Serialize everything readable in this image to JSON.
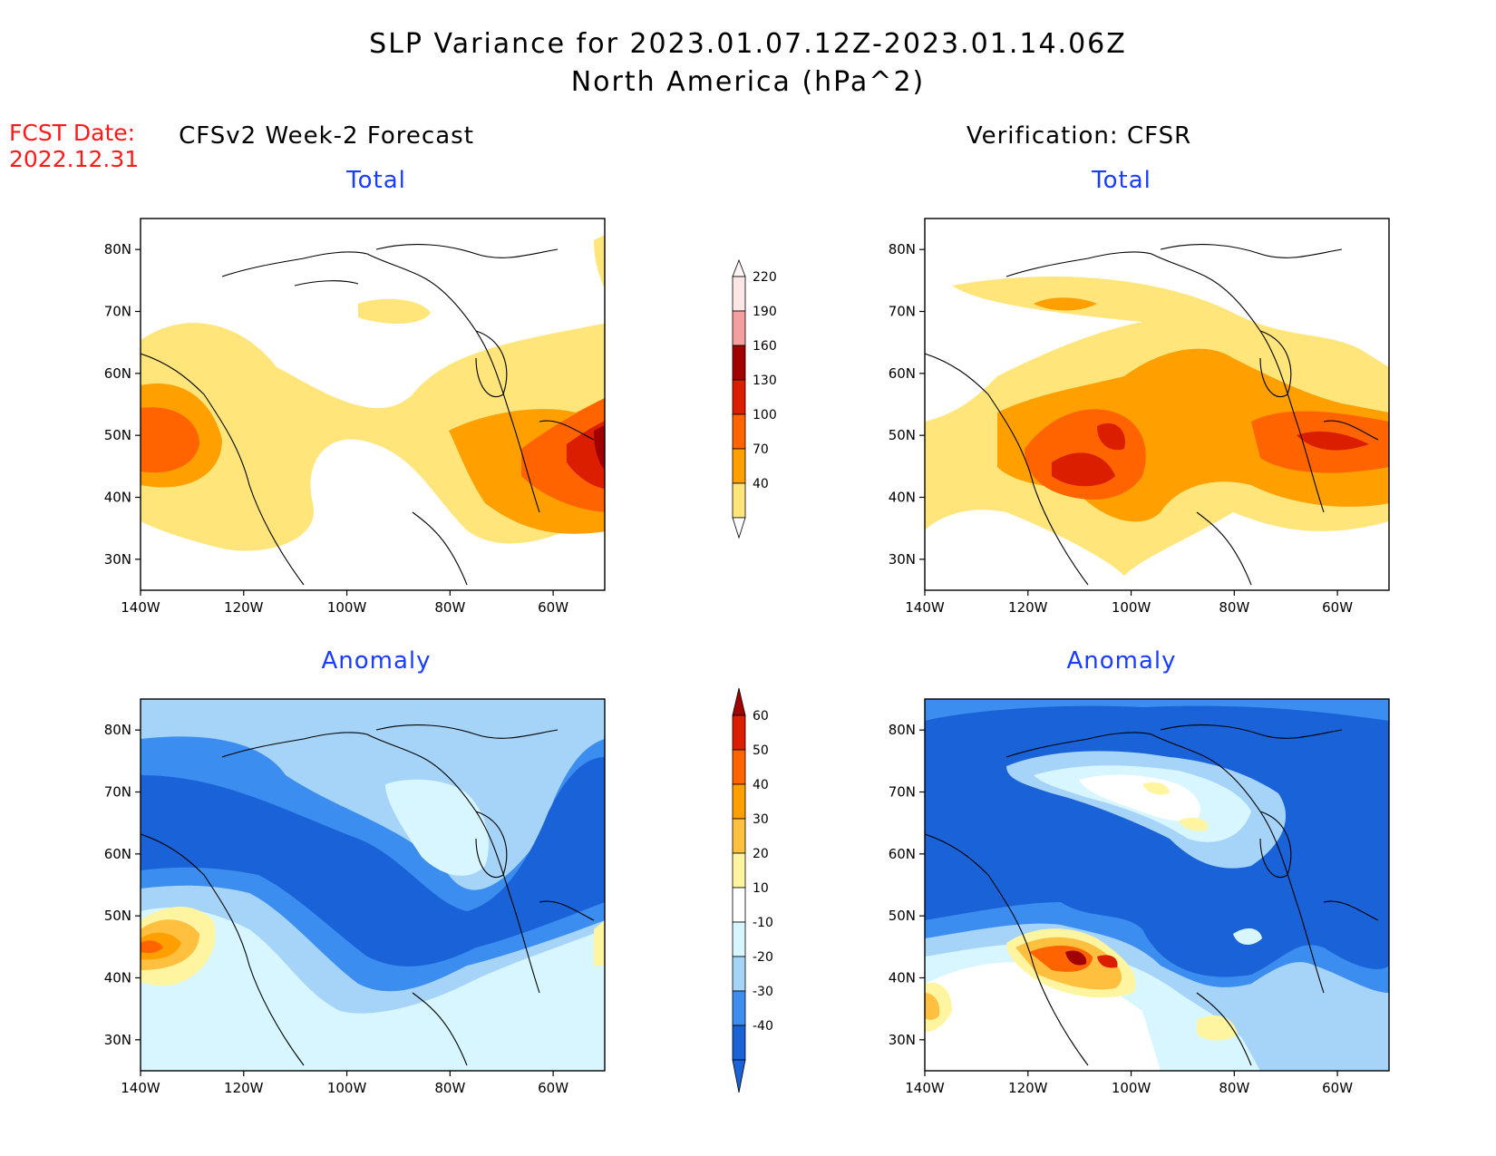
{
  "header": {
    "title_line1": "SLP Variance for 2023.01.07.12Z-2023.01.14.06Z",
    "title_line2": "North America (hPa^2)"
  },
  "fcst": {
    "label": "FCST Date:",
    "date": "2022.12.31"
  },
  "columns": {
    "left": "CFSv2 Week-2 Forecast",
    "right": "Verification: CFSR"
  },
  "panels": {
    "total_label": "Total",
    "anomaly_label": "Anomaly"
  },
  "axes": {
    "lat_labels": [
      "80N",
      "70N",
      "60N",
      "50N",
      "40N",
      "30N"
    ],
    "lon_labels": [
      "140W",
      "120W",
      "100W",
      "80W",
      "60W"
    ]
  },
  "colorbar_total": {
    "levels": [
      "220",
      "190",
      "160",
      "130",
      "100",
      "70",
      "40"
    ],
    "colors": [
      "#fde6e6",
      "#f4a0a0",
      "#a00000",
      "#dc1e00",
      "#ff6400",
      "#ffa000",
      "#ffe57a"
    ]
  },
  "colorbar_anomaly": {
    "levels": [
      "60",
      "50",
      "40",
      "30",
      "20",
      "10",
      "-10",
      "-20",
      "-30",
      "-40"
    ],
    "colors": [
      "#a00000",
      "#dc1e00",
      "#ff6400",
      "#ffa000",
      "#ffc040",
      "#fff5a0",
      "#ffffff",
      "#d8f6ff",
      "#a5d4f8",
      "#3b8df0",
      "#1a62d8"
    ]
  },
  "map_colors": {
    "land_line": "#000000",
    "total_1": "#ffe57a",
    "total_2": "#ffa000",
    "total_3": "#ff6400",
    "total_4": "#dc1e00",
    "total_5": "#a00000",
    "anom_neg4": "#1a62d8",
    "anom_neg3": "#3b8df0",
    "anom_neg2": "#a5d4f8",
    "anom_neg1": "#d8f6ff"
  }
}
